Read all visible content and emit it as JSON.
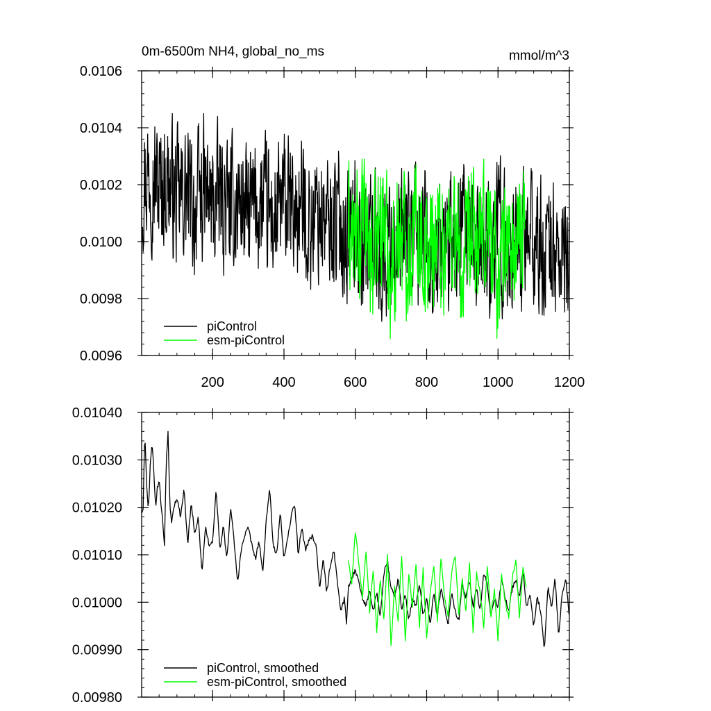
{
  "chart_data": [
    {
      "type": "line",
      "title": "0m-6500m NH4, global_no_ms",
      "units": "mmol/m^3",
      "xlim": [
        1,
        1200
      ],
      "ylim": [
        0.0096,
        0.0106
      ],
      "xticks": [
        200,
        400,
        600,
        800,
        1000,
        1200
      ],
      "xtick_labels": [
        "200",
        "400",
        "600",
        "800",
        "1000",
        "1200"
      ],
      "yticks": [
        0.0096,
        0.0098,
        0.01,
        0.0102,
        0.0104,
        0.0106
      ],
      "ytick_labels": [
        "0.0096",
        "0.0098",
        "0.0100",
        "0.0102",
        "0.0104",
        "0.0106"
      ],
      "legend_position": "bottom-left",
      "series": [
        {
          "name": "piControl",
          "color": "#000000",
          "x": [
            1,
            25,
            50,
            75,
            100,
            125,
            150,
            175,
            200,
            225,
            250,
            275,
            300,
            325,
            350,
            375,
            400,
            425,
            450,
            475,
            500,
            525,
            550,
            575,
            600,
            625,
            650,
            675,
            700,
            725,
            750,
            775,
            800,
            825,
            850,
            875,
            900,
            925,
            950,
            975,
            1000,
            1025,
            1050,
            1075,
            1100,
            1125,
            1150,
            1175,
            1200
          ],
          "y": [
            0.01021,
            0.01026,
            0.01019,
            0.01022,
            0.01014,
            0.01017,
            0.01011,
            0.01018,
            0.01012,
            0.01016,
            0.0101,
            0.01015,
            0.01009,
            0.01013,
            0.01011,
            0.01007,
            0.01014,
            0.01009,
            0.01012,
            0.01006,
            0.01011,
            0.01005,
            0.01009,
            0.01002,
            0.01006,
            0.00998,
            0.01004,
            0.00992,
            0.01003,
            0.00996,
            0.01005,
            0.00999,
            0.01002,
            0.00994,
            0.01001,
            0.00997,
            0.01003,
            0.00995,
            0.01001,
            0.00998,
            0.01004,
            0.00996,
            0.01002,
            0.00999,
            0.01001,
            0.00995,
            0.00999,
            0.00992,
            0.00997
          ],
          "y_range_shown": [
            0.00972,
            0.01045
          ]
        },
        {
          "name": "esm-piControl",
          "color": "#00ff00",
          "x": [
            580,
            600,
            625,
            650,
            675,
            700,
            725,
            750,
            775,
            800,
            825,
            850,
            875,
            900,
            925,
            950,
            975,
            1000,
            1025,
            1050,
            1075
          ],
          "y": [
            0.01005,
            0.00998,
            0.01008,
            0.00992,
            0.01012,
            0.00989,
            0.01006,
            0.00996,
            0.01009,
            0.00993,
            0.01004,
            0.00998,
            0.01007,
            0.00985,
            0.01003,
            0.00997,
            0.01008,
            0.00988,
            0.01002,
            0.00995,
            0.01006
          ],
          "y_range_shown": [
            0.00966,
            0.01029
          ]
        }
      ]
    },
    {
      "type": "line",
      "xlim": [
        1,
        1200
      ],
      "ylim": [
        0.0098,
        0.0104
      ],
      "xticks": [
        200,
        400,
        600,
        800,
        1000,
        1200
      ],
      "yticks": [
        0.0098,
        0.0099,
        0.01,
        0.0101,
        0.0102,
        0.0103,
        0.0104
      ],
      "ytick_labels": [
        "0.00980",
        "0.00990",
        "0.01000",
        "0.01010",
        "0.01020",
        "0.01030",
        "0.01040"
      ],
      "legend_position": "bottom-left",
      "series": [
        {
          "name": "piControl, smoothed",
          "color": "#000000",
          "x": [
            1,
            5,
            10,
            15,
            20,
            25,
            30,
            35,
            40,
            45,
            50,
            55,
            60,
            65,
            70,
            75,
            80,
            85,
            90,
            100,
            110,
            120,
            130,
            140,
            150,
            160,
            170,
            180,
            190,
            200,
            210,
            220,
            230,
            240,
            250,
            260,
            270,
            280,
            290,
            300,
            310,
            320,
            330,
            340,
            350,
            360,
            370,
            380,
            390,
            400,
            410,
            420,
            430,
            440,
            450,
            460,
            470,
            480,
            490,
            500,
            510,
            520,
            530,
            540,
            550,
            560,
            570,
            575,
            580,
            590,
            600,
            610,
            620,
            630,
            640,
            650,
            660,
            670,
            680,
            690,
            700,
            710,
            720,
            730,
            740,
            750,
            760,
            770,
            780,
            790,
            800,
            810,
            820,
            830,
            840,
            850,
            860,
            870,
            880,
            890,
            900,
            910,
            920,
            930,
            940,
            950,
            960,
            970,
            980,
            990,
            1000,
            1010,
            1020,
            1030,
            1040,
            1050,
            1060,
            1070,
            1080,
            1090,
            1100,
            1110,
            1120,
            1130,
            1140,
            1150,
            1160,
            1170,
            1180,
            1190,
            1200
          ],
          "y": [
            0.01019,
            0.0102,
            0.01036,
            0.01025,
            0.01019,
            0.01029,
            0.01034,
            0.01028,
            0.0102,
            0.01024,
            0.01026,
            0.01021,
            0.01017,
            0.01012,
            0.0103,
            0.01036,
            0.01021,
            0.01017,
            0.0102,
            0.01022,
            0.01018,
            0.01024,
            0.01012,
            0.01021,
            0.01014,
            0.01018,
            0.01006,
            0.01016,
            0.01012,
            0.01013,
            0.01024,
            0.01011,
            0.01016,
            0.01009,
            0.0102,
            0.01013,
            0.01004,
            0.01011,
            0.01014,
            0.01016,
            0.01012,
            0.01009,
            0.01013,
            0.01006,
            0.01017,
            0.01024,
            0.01012,
            0.0101,
            0.01019,
            0.01009,
            0.01013,
            0.01018,
            0.01021,
            0.0101,
            0.01016,
            0.01011,
            0.01013,
            0.01014,
            0.01012,
            0.01003,
            0.01009,
            0.01002,
            0.01008,
            0.01011,
            0.01004,
            0.00998,
            0.01001,
            0.00995,
            0.01003,
            0.01005,
            0.01007,
            0.01004,
            0.01001,
            0.00999,
            0.01003,
            0.00998,
            0.01002,
            0.00997,
            0.01006,
            0.01009,
            0.01003,
            0.01001,
            0.01005,
            0.00998,
            0.01002,
            0.00996,
            0.01001,
            0.00999,
            0.01004,
            0.00997,
            0.01001,
            0.00995,
            0.01002,
            0.00997,
            0.01003,
            0.00999,
            0.00995,
            0.01002,
            0.00998,
            0.00996,
            0.01004,
            0.01001,
            0.01005,
            0.00999,
            0.01003,
            0.00998,
            0.01006,
            0.01004,
            0.00997,
            0.01001,
            0.00999,
            0.01005,
            0.01001,
            0.00998,
            0.01003,
            0.01005,
            0.01001,
            0.01007,
            0.00999,
            0.01002,
            0.00995,
            0.01001,
            0.00998,
            0.0099,
            0.01003,
            0.00999,
            0.01005,
            0.00993,
            0.01002,
            0.01005,
            0.00997
          ],
          "y_range_shown": [
            0.00988,
            0.01036
          ]
        },
        {
          "name": "esm-piControl, smoothed",
          "color": "#00ff00",
          "x": [
            580,
            590,
            600,
            610,
            620,
            630,
            640,
            650,
            660,
            670,
            680,
            690,
            700,
            710,
            720,
            730,
            740,
            750,
            760,
            770,
            780,
            790,
            800,
            810,
            820,
            830,
            840,
            850,
            860,
            870,
            880,
            890,
            900,
            910,
            920,
            930,
            940,
            950,
            960,
            970,
            980,
            990,
            1000,
            1010,
            1020,
            1030,
            1040,
            1050,
            1060,
            1070,
            1080
          ],
          "y": [
            0.01009,
            0.01004,
            0.01015,
            0.01008,
            0.01001,
            0.01011,
            0.00998,
            0.01007,
            0.00994,
            0.01005,
            0.00996,
            0.0101,
            0.00991,
            0.01003,
            0.00996,
            0.0101,
            0.00992,
            0.01006,
            0.00999,
            0.01008,
            0.00995,
            0.01007,
            0.00992,
            0.01002,
            0.01008,
            0.00996,
            0.01009,
            0.01001,
            0.00997,
            0.01006,
            0.0101,
            0.00997,
            0.01005,
            0.00998,
            0.01008,
            0.00994,
            0.01006,
            0.01002,
            0.00995,
            0.01008,
            0.00997,
            0.01003,
            0.00992,
            0.01006,
            0.01,
            0.00997,
            0.01005,
            0.01009,
            0.00997,
            0.01007,
            0.01003
          ],
          "y_range_shown": [
            0.0099,
            0.01015
          ]
        }
      ]
    }
  ]
}
